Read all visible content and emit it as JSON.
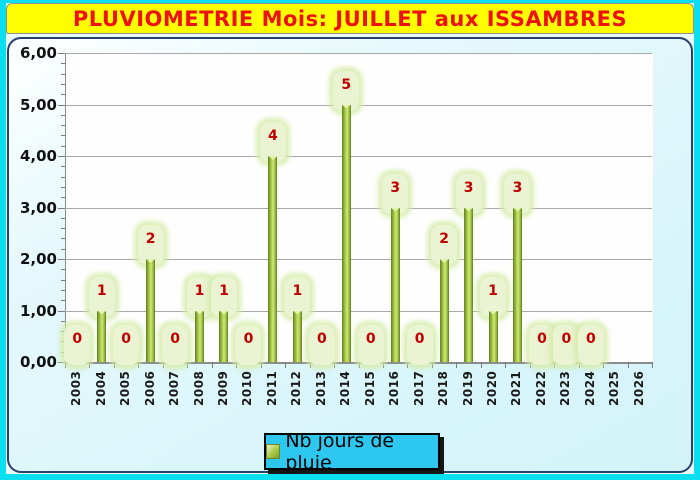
{
  "title": "PLUVIOMETRIE Mois: JUILLET aux ISSAMBRES",
  "legend": {
    "label": "Nb jours de pluie"
  },
  "colors": {
    "outer_border": "#0BDFEF",
    "title_bg": "#FFFF00",
    "title_text": "#EE1111",
    "panel_bg": "#D7F5FA",
    "panel_border": "#27406E",
    "plot_bg": "#FFFFFF",
    "gridline": "#A8A8A8",
    "bar_dark": "#5F7D1F",
    "bar_light": "#CFE873",
    "badge_bg": "#EAF3D2",
    "badge_text": "#C00000",
    "legend_bg": "#2EC7EF"
  },
  "chart_data": {
    "type": "bar",
    "title": "PLUVIOMETRIE Mois: JUILLET aux ISSAMBRES",
    "xlabel": "",
    "ylabel": "",
    "series_name": "Nb jours de pluie",
    "categories": [
      "2003",
      "2004",
      "2005",
      "2006",
      "2007",
      "2008",
      "2009",
      "2010",
      "2011",
      "2012",
      "2013",
      "2014",
      "2015",
      "2016",
      "2017",
      "2018",
      "2019",
      "2020",
      "2021",
      "2022",
      "2023",
      "2024",
      "2025",
      "2026"
    ],
    "values": [
      0,
      1,
      0,
      2,
      0,
      1,
      1,
      0,
      4,
      1,
      0,
      5,
      0,
      3,
      0,
      2,
      3,
      1,
      3,
      0,
      0,
      0,
      null,
      null
    ],
    "ylim": [
      0,
      6
    ],
    "ytick_labels": [
      "0,00",
      "1,00",
      "2,00",
      "3,00",
      "4,00",
      "5,00",
      "6,00"
    ],
    "minor_tick_step": 0.2,
    "grid": true,
    "legend_position": "bottom"
  }
}
